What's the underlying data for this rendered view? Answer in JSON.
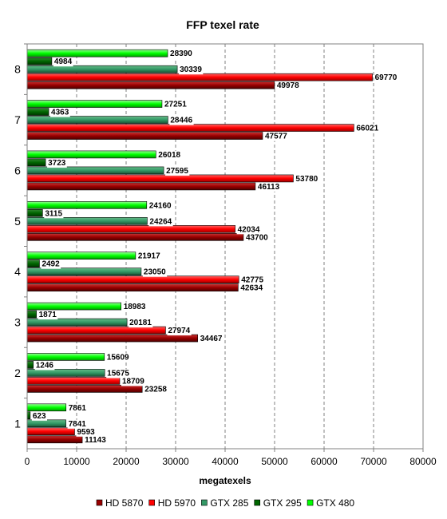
{
  "chart_data": {
    "type": "bar",
    "orientation": "horizontal",
    "title": "FFP texel rate",
    "xlabel": "megatexels",
    "ylabel": "",
    "xlim": [
      0,
      80000
    ],
    "xticks": [
      0,
      10000,
      20000,
      30000,
      40000,
      50000,
      60000,
      70000,
      80000
    ],
    "xtick_labels": [
      "0",
      "10000",
      "20000",
      "30000",
      "40000",
      "50000",
      "60000",
      "70000",
      "80000"
    ],
    "grid": "vertical dashed",
    "legend_position": "bottom",
    "categories": [
      "1",
      "2",
      "3",
      "4",
      "5",
      "6",
      "7",
      "8"
    ],
    "series": [
      {
        "name": "HD 5870",
        "color": "#990000",
        "values": [
          11143,
          23258,
          34467,
          42634,
          43700,
          46113,
          47577,
          49978
        ]
      },
      {
        "name": "HD 5970",
        "color": "#ff0000",
        "values": [
          9593,
          18709,
          27974,
          42775,
          42034,
          53780,
          66021,
          69770
        ]
      },
      {
        "name": "GTX 285",
        "color": "#339966",
        "values": [
          7841,
          15675,
          20181,
          23050,
          24264,
          27595,
          28446,
          30339
        ]
      },
      {
        "name": "GTX 295",
        "color": "#006600",
        "values": [
          623,
          1246,
          1871,
          2492,
          3115,
          3723,
          4363,
          4984
        ]
      },
      {
        "name": "GTX 480",
        "color": "#00ff00",
        "values": [
          7861,
          15609,
          18983,
          21917,
          24160,
          26018,
          27251,
          28390
        ]
      }
    ]
  }
}
